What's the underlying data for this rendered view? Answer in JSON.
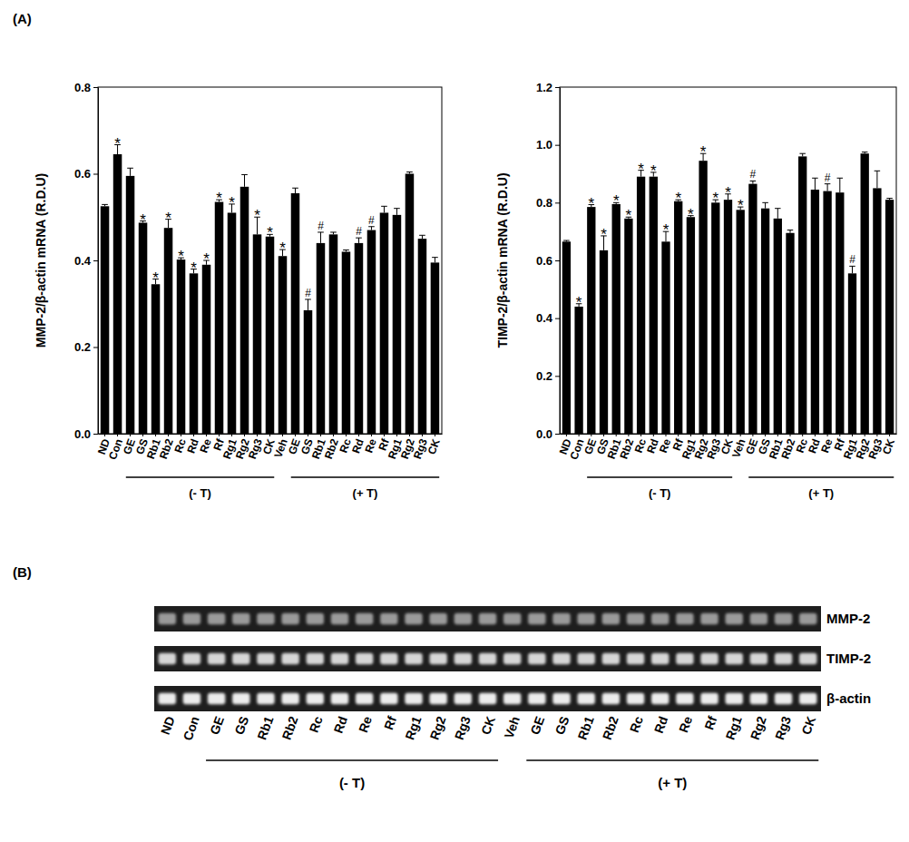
{
  "chart_data": [
    {
      "type": "bar",
      "panel": "(A)",
      "y_label": "MMP-2/β-actin mRNA (R.D.U)",
      "categories": [
        "ND",
        "Con",
        "GE",
        "GS",
        "Rb1",
        "Rb2",
        "Rc",
        "Rd",
        "Re",
        "Rf",
        "Rg1",
        "Rg2",
        "Rg3",
        "CK",
        "Veh",
        "GE",
        "GS",
        "Rb1",
        "Rb2",
        "Rc",
        "Rd",
        "Re",
        "Rf",
        "Rg1",
        "Rg2",
        "Rg3",
        "CK"
      ],
      "values": [
        0.525,
        0.645,
        0.595,
        0.487,
        0.345,
        0.475,
        0.402,
        0.37,
        0.39,
        0.535,
        0.51,
        0.57,
        0.46,
        0.455,
        0.41,
        0.555,
        0.285,
        0.44,
        0.46,
        0.42,
        0.44,
        0.47,
        0.51,
        0.505,
        0.6,
        0.45,
        0.395
      ],
      "errors": [
        0.004,
        0.022,
        0.018,
        0.004,
        0.012,
        0.02,
        0.004,
        0.01,
        0.01,
        0.005,
        0.02,
        0.028,
        0.04,
        0.005,
        0.015,
        0.012,
        0.025,
        0.025,
        0.005,
        0.004,
        0.012,
        0.008,
        0.015,
        0.015,
        0.004,
        0.008,
        0.012
      ],
      "significance": [
        null,
        "*",
        null,
        "*",
        "*",
        "*",
        "*",
        "*",
        "*",
        "*",
        "*",
        null,
        "*",
        "*",
        "*",
        null,
        "#",
        "#",
        null,
        null,
        "#",
        "#",
        null,
        null,
        null,
        null,
        null
      ],
      "groups": [
        {
          "label": "(- T)",
          "start": 2,
          "end": 13
        },
        {
          "label": "(+ T)",
          "start": 15,
          "end": 26
        }
      ],
      "color": "#000000",
      "ylim": [
        0,
        0.8
      ],
      "yticks": [
        {
          "value": 0,
          "label": "0.0"
        },
        0.2,
        0.4,
        0.6,
        0.8
      ]
    },
    {
      "type": "bar",
      "y_label": "TIMP-2/β-actin mRNA (R.D.U)",
      "categories": [
        "ND",
        "Con",
        "GE",
        "GS",
        "Rb1",
        "Rb2",
        "Rc",
        "Rd",
        "Re",
        "Rf",
        "Rg1",
        "Rg2",
        "Rg3",
        "CK",
        "Veh",
        "GE",
        "GS",
        "Rb1",
        "Rb2",
        "Rc",
        "Rd",
        "Re",
        "Rf",
        "Rg1",
        "Rg2",
        "Rg3",
        "CK"
      ],
      "values": [
        0.665,
        0.44,
        0.785,
        0.635,
        0.795,
        0.745,
        0.89,
        0.89,
        0.665,
        0.805,
        0.75,
        0.945,
        0.8,
        0.81,
        0.775,
        0.865,
        0.78,
        0.745,
        0.695,
        0.96,
        0.845,
        0.84,
        0.835,
        0.555,
        0.97,
        0.85,
        0.81
      ],
      "errors": [
        0.004,
        0.01,
        0.008,
        0.05,
        0.005,
        0.005,
        0.022,
        0.015,
        0.035,
        0.005,
        0.005,
        0.025,
        0.01,
        0.02,
        0.01,
        0.01,
        0.02,
        0.035,
        0.01,
        0.01,
        0.04,
        0.025,
        0.05,
        0.025,
        0.005,
        0.06,
        0.005
      ],
      "significance": [
        null,
        "*",
        "*",
        "*",
        "*",
        "*",
        "*",
        "*",
        "*",
        "*",
        "*",
        "*",
        "*",
        "*",
        "*",
        "#",
        null,
        null,
        null,
        null,
        null,
        "#",
        null,
        "#",
        null,
        null,
        null
      ],
      "groups": [
        {
          "label": "(- T)",
          "start": 2,
          "end": 13
        },
        {
          "label": "(+ T)",
          "start": 15,
          "end": 26
        }
      ],
      "color": "#000000",
      "ylim": [
        0,
        1.2
      ],
      "yticks": [
        {
          "value": 0,
          "label": "0.0"
        },
        0.2,
        0.4,
        0.6,
        0.8,
        {
          "value": 1,
          "label": "1.0"
        },
        1.2
      ]
    },
    {
      "type": "gel",
      "panel": "(B)",
      "rows": [
        "MMP-2",
        "TIMP-2",
        "β-actin"
      ],
      "categories": [
        "ND",
        "Con",
        "GE",
        "GS",
        "Rb1",
        "Rb2",
        "Rc",
        "Rd",
        "Re",
        "Rf",
        "Rg1",
        "Rg2",
        "Rg3",
        "CK",
        "Veh",
        "GE",
        "GS",
        "Rb1",
        "Rb2",
        "Rc",
        "Rd",
        "Re",
        "Rf",
        "Rg1",
        "Rg2",
        "Rg3",
        "CK"
      ],
      "groups": [
        {
          "label": "(- T)",
          "start": 2,
          "end": 13
        },
        {
          "label": "(+ T)",
          "start": 15,
          "end": 26
        }
      ]
    }
  ]
}
